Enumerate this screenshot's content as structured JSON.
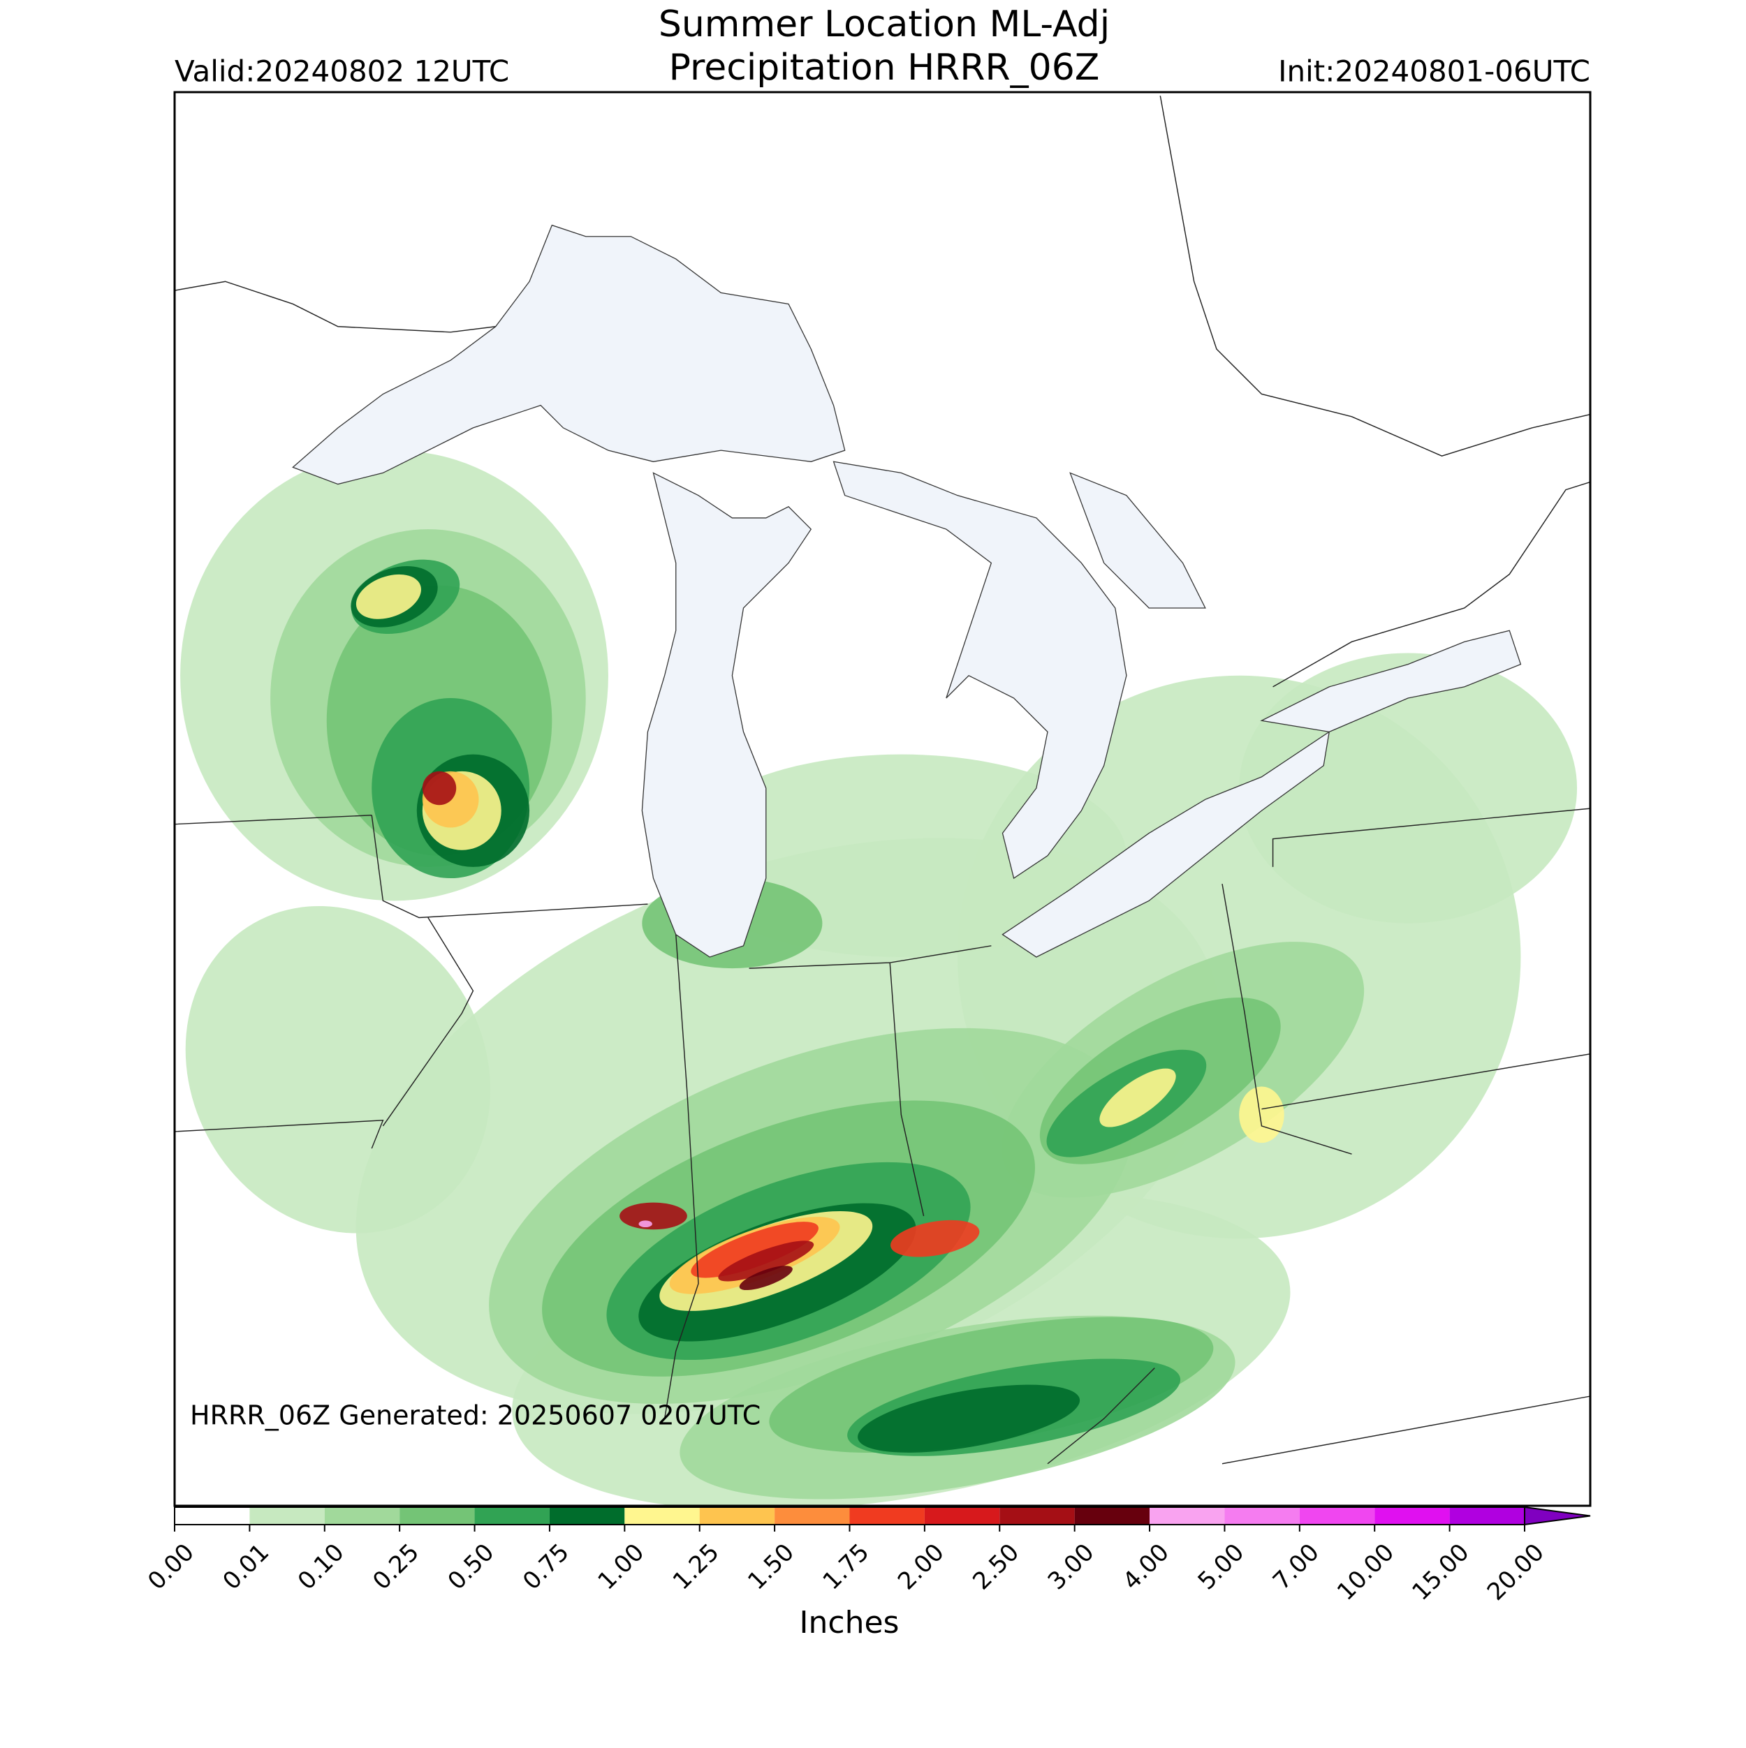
{
  "map": {
    "title": "Summer Location ML-Adj",
    "subtitle": "Precipitation HRRR_06Z",
    "valid": "Valid:20240802 12UTC",
    "init": "Init:20240801-06UTC",
    "note": "HRRR_06Z Generated: 20250607 0207UTC",
    "colorbar": {
      "label": "Inches",
      "ticks": [
        {
          "value": 0,
          "label": "0.00"
        },
        {
          "value": 0.01,
          "label": "0.01"
        },
        {
          "value": 0.1,
          "label": "0.10"
        },
        {
          "value": 0.25,
          "label": "0.25"
        },
        {
          "value": 0.5,
          "label": "0.50"
        },
        {
          "value": 0.75,
          "label": "0.75"
        },
        {
          "value": 1,
          "label": "1.00"
        },
        {
          "value": 1.25,
          "label": "1.25"
        },
        {
          "value": 1.5,
          "label": "1.50"
        },
        {
          "value": 1.75,
          "label": "1.75"
        },
        {
          "value": 2,
          "label": "2.00"
        },
        {
          "value": 2.5,
          "label": "2.50"
        },
        {
          "value": 3,
          "label": "3.00"
        },
        {
          "value": 4,
          "label": "4.00"
        },
        {
          "value": 5,
          "label": "5.00"
        },
        {
          "value": 7,
          "label": "7.00"
        },
        {
          "value": 10,
          "label": "10.00"
        },
        {
          "value": 15,
          "label": "15.00"
        },
        {
          "value": 20,
          "label": "20.00"
        }
      ],
      "colors": [
        "#ffffff",
        "#c7e9c0",
        "#a1d99b",
        "#74c476",
        "#31a354",
        "#006d2c",
        "#fff68f",
        "#fec44f",
        "#fd8d3c",
        "#f03b20",
        "#d7191c",
        "#a50f15",
        "#67000d",
        "#f9a3f0",
        "#f57cf0",
        "#f046f0",
        "#e010f0",
        "#b000e0"
      ],
      "extend_color": "#8000c0"
    }
  }
}
